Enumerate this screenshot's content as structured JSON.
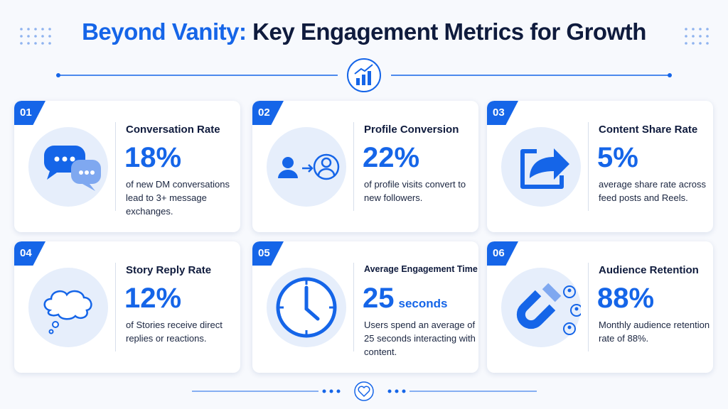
{
  "header": {
    "title_highlight": "Beyond Vanity:",
    "title_rest": "Key Engagement Metrics for Growth"
  },
  "cards": [
    {
      "number": "01",
      "title": "Conversation Rate",
      "value": "18%",
      "description": "of new DM conversations lead to 3+ message exchanges."
    },
    {
      "number": "02",
      "title": "Profile Conversion",
      "value": "22%",
      "description": "of profile visits convert to new followers."
    },
    {
      "number": "03",
      "title": "Content Share Rate",
      "value": "5%",
      "description": "average share rate across feed posts and Reels."
    },
    {
      "number": "04",
      "title": "Story Reply Rate",
      "value": "12%",
      "description": "of Stories receive direct replies or reactions."
    },
    {
      "number": "05",
      "title": "Average Engagement Time",
      "value": "25",
      "unit": "seconds",
      "description": "Users spend an average of 25 seconds interacting with content."
    },
    {
      "number": "06",
      "title": "Audience Retention",
      "value": "88%",
      "description": "Monthly audience retention rate of 88%."
    }
  ]
}
